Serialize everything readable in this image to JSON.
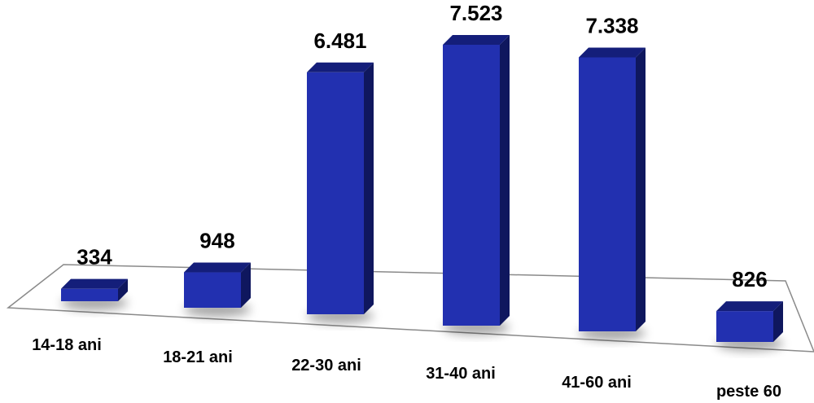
{
  "chart_data": {
    "type": "bar",
    "categories": [
      "14-18 ani",
      "18-21 ani",
      "22-30 ani",
      "31-40 ani",
      "41-60 ani",
      "peste 60"
    ],
    "values": [
      334,
      948,
      6481,
      7523,
      7338,
      826
    ],
    "value_labels": [
      "334",
      "948",
      "6.481",
      "7.523",
      "7.338",
      "826"
    ],
    "title": "",
    "xlabel": "",
    "ylabel": "",
    "ylim": [
      0,
      7523
    ],
    "grid": false,
    "legend": "none",
    "colors": {
      "bar_front": "#2230b0",
      "bar_top": "#141e7a",
      "bar_side": "#0f175e",
      "floor_line": "#8a8a8a"
    }
  }
}
